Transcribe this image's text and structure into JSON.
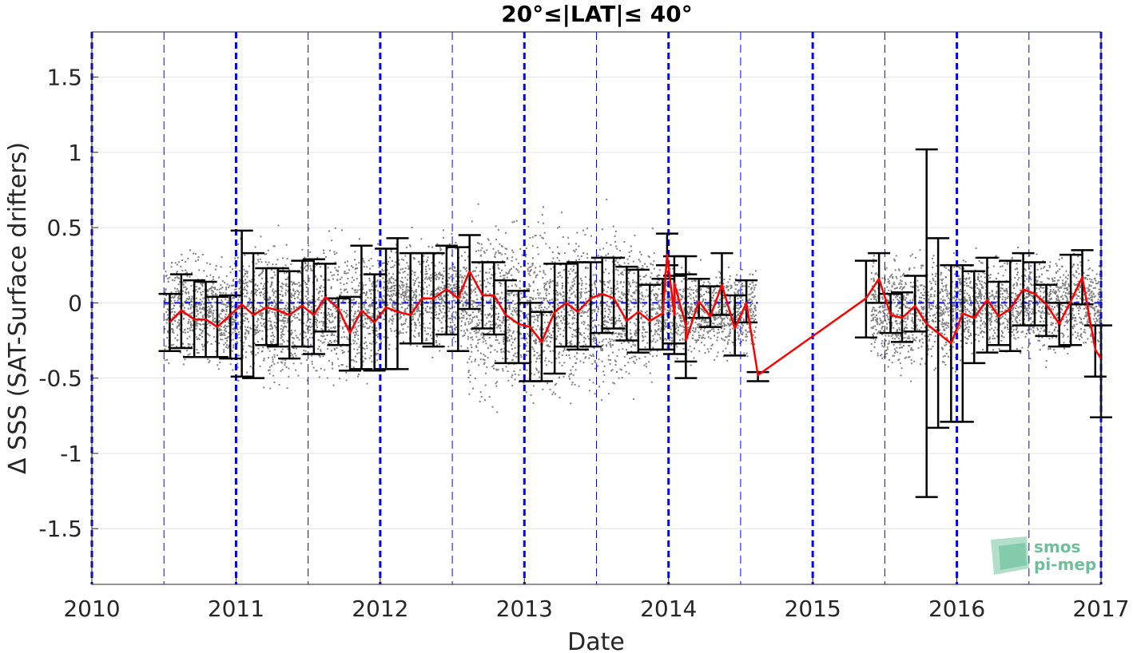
{
  "chart_data": {
    "type": "scatter",
    "title": "20°≤|LAT|≤ 40°",
    "xlabel": "Date",
    "ylabel": "Δ SSS (SAT-Surface drifters)",
    "xlim": [
      2010,
      2017
    ],
    "ylim": [
      -1.87,
      1.8
    ],
    "xticks": [
      2010,
      2011,
      2012,
      2013,
      2014,
      2015,
      2016,
      2017
    ],
    "yticks": [
      -1.5,
      -1,
      -0.5,
      0,
      0.5,
      1,
      1.5
    ],
    "ytick_labels": [
      "-1.5",
      "-1",
      "-0.5",
      "0",
      "0.5",
      "1",
      "1.5"
    ],
    "grid": true,
    "zero_line_color": "#0000ff",
    "year_line_color": "#0000ff",
    "scatter_color": "#808080",
    "errorbar_color": "#000000",
    "mean_color": "#ff0000",
    "scatter_clusters": [
      {
        "x": [
          2010.5,
          2011.0
        ],
        "center": -0.05,
        "spread": 0.22
      },
      {
        "x": [
          2011.0,
          2012.0
        ],
        "center": -0.05,
        "spread": 0.28
      },
      {
        "x": [
          2012.0,
          2012.6
        ],
        "center": 0.05,
        "spread": 0.22
      },
      {
        "x": [
          2012.6,
          2013.9
        ],
        "center": -0.05,
        "spread": 0.35
      },
      {
        "x": [
          2013.9,
          2014.6
        ],
        "center": -0.05,
        "spread": 0.18
      },
      {
        "x": [
          2015.4,
          2016.0
        ],
        "center": -0.05,
        "spread": 0.25
      },
      {
        "x": [
          2016.0,
          2017.0
        ],
        "center": 0.0,
        "spread": 0.2
      }
    ],
    "monthly": [
      {
        "x": 2010.54,
        "mean": -0.13,
        "low": -0.32,
        "high": 0.06
      },
      {
        "x": 2010.62,
        "mean": -0.05,
        "low": -0.3,
        "high": 0.19
      },
      {
        "x": 2010.71,
        "mean": -0.11,
        "low": -0.36,
        "high": 0.15
      },
      {
        "x": 2010.79,
        "mean": -0.11,
        "low": -0.36,
        "high": 0.14
      },
      {
        "x": 2010.87,
        "mean": -0.16,
        "low": -0.36,
        "high": 0.04
      },
      {
        "x": 2010.96,
        "mean": -0.08,
        "low": -0.37,
        "high": 0.05
      },
      {
        "x": 2011.04,
        "mean": -0.01,
        "low": -0.49,
        "high": 0.48
      },
      {
        "x": 2011.12,
        "mean": -0.08,
        "low": -0.5,
        "high": 0.33
      },
      {
        "x": 2011.21,
        "mean": -0.03,
        "low": -0.28,
        "high": 0.23
      },
      {
        "x": 2011.29,
        "mean": -0.05,
        "low": -0.29,
        "high": 0.23
      },
      {
        "x": 2011.37,
        "mean": -0.08,
        "low": -0.37,
        "high": 0.21
      },
      {
        "x": 2011.46,
        "mean": -0.02,
        "low": -0.29,
        "high": 0.28
      },
      {
        "x": 2011.54,
        "mean": -0.08,
        "low": -0.34,
        "high": 0.29
      },
      {
        "x": 2011.62,
        "mean": 0.04,
        "low": -0.19,
        "high": 0.26
      },
      {
        "x": 2011.71,
        "mean": -0.04,
        "low": -0.28,
        "high": 0.03
      },
      {
        "x": 2011.79,
        "mean": -0.2,
        "low": -0.45,
        "high": 0.04
      },
      {
        "x": 2011.87,
        "mean": -0.05,
        "low": -0.44,
        "high": 0.38
      },
      {
        "x": 2011.96,
        "mean": -0.13,
        "low": -0.45,
        "high": 0.19
      },
      {
        "x": 2012.04,
        "mean": -0.03,
        "low": -0.44,
        "high": 0.36
      },
      {
        "x": 2012.12,
        "mean": -0.06,
        "low": -0.44,
        "high": 0.43
      },
      {
        "x": 2012.21,
        "mean": -0.08,
        "low": -0.27,
        "high": 0.33
      },
      {
        "x": 2012.29,
        "mean": 0.03,
        "low": -0.27,
        "high": 0.33
      },
      {
        "x": 2012.37,
        "mean": 0.03,
        "low": -0.29,
        "high": 0.33
      },
      {
        "x": 2012.46,
        "mean": 0.09,
        "low": -0.21,
        "high": 0.38
      },
      {
        "x": 2012.54,
        "mean": 0.03,
        "low": -0.32,
        "high": 0.37
      },
      {
        "x": 2012.62,
        "mean": 0.21,
        "low": -0.04,
        "high": 0.45
      },
      {
        "x": 2012.71,
        "mean": 0.05,
        "low": -0.17,
        "high": 0.27
      },
      {
        "x": 2012.79,
        "mean": 0.05,
        "low": -0.21,
        "high": 0.27
      },
      {
        "x": 2012.87,
        "mean": -0.08,
        "low": -0.4,
        "high": 0.15
      },
      {
        "x": 2012.96,
        "mean": -0.14,
        "low": -0.4,
        "high": 0.08
      },
      {
        "x": 2013.04,
        "mean": -0.16,
        "low": -0.52,
        "high": 0.0
      },
      {
        "x": 2013.12,
        "mean": -0.26,
        "low": -0.52,
        "high": -0.06
      },
      {
        "x": 2013.21,
        "mean": -0.06,
        "low": -0.47,
        "high": 0.26
      },
      {
        "x": 2013.29,
        "mean": 0.0,
        "low": -0.29,
        "high": 0.26
      },
      {
        "x": 2013.37,
        "mean": -0.06,
        "low": -0.31,
        "high": 0.27
      },
      {
        "x": 2013.46,
        "mean": 0.03,
        "low": -0.29,
        "high": 0.27
      },
      {
        "x": 2013.54,
        "mean": 0.06,
        "low": -0.2,
        "high": 0.3
      },
      {
        "x": 2013.62,
        "mean": 0.03,
        "low": -0.17,
        "high": 0.3
      },
      {
        "x": 2013.71,
        "mean": -0.12,
        "low": -0.25,
        "high": 0.24
      },
      {
        "x": 2013.79,
        "mean": -0.06,
        "low": -0.33,
        "high": 0.22
      },
      {
        "x": 2013.87,
        "mean": -0.12,
        "low": -0.31,
        "high": 0.12
      },
      {
        "x": 2013.96,
        "mean": -0.07,
        "low": -0.31,
        "high": 0.16
      },
      {
        "x": 2014.04,
        "mean": -0.08,
        "low": -0.34,
        "high": 0.18
      },
      {
        "x": 2014.12,
        "mean": -0.15,
        "low": -0.39,
        "high": 0.19
      },
      {
        "x": 2013.99,
        "mean": 0.32,
        "low": 0.25,
        "high": 0.46
      },
      {
        "x": 2014.04,
        "mean": 0.13,
        "low": -0.27,
        "high": 0.31
      },
      {
        "x": 2014.12,
        "mean": -0.25,
        "low": -0.5,
        "high": 0.31
      },
      {
        "x": 2014.21,
        "mean": 0.01,
        "low": -0.1,
        "high": 0.16
      },
      {
        "x": 2014.29,
        "mean": -0.09,
        "low": -0.16,
        "high": 0.11
      },
      {
        "x": 2014.37,
        "mean": 0.12,
        "low": -0.08,
        "high": 0.33
      },
      {
        "x": 2014.46,
        "mean": -0.17,
        "low": -0.35,
        "high": 0.05
      },
      {
        "x": 2014.54,
        "mean": 0.0,
        "low": -0.13,
        "high": 0.15
      },
      {
        "x": 2014.62,
        "mean": -0.48,
        "low": -0.52,
        "high": -0.46
      },
      {
        "x": 2015.37,
        "mean": 0.03,
        "low": -0.23,
        "high": 0.28
      },
      {
        "x": 2015.46,
        "mean": 0.16,
        "low": 0.0,
        "high": 0.33
      },
      {
        "x": 2015.54,
        "mean": -0.08,
        "low": -0.2,
        "high": 0.06
      },
      {
        "x": 2015.62,
        "mean": -0.1,
        "low": -0.26,
        "high": 0.07
      },
      {
        "x": 2015.71,
        "mean": -0.02,
        "low": -0.19,
        "high": 0.18
      },
      {
        "x": 2015.79,
        "mean": -0.14,
        "low": -1.29,
        "high": 1.02
      },
      {
        "x": 2015.87,
        "mean": -0.2,
        "low": -0.83,
        "high": 0.43
      },
      {
        "x": 2015.96,
        "mean": -0.27,
        "low": -0.79,
        "high": 0.25
      },
      {
        "x": 2016.04,
        "mean": -0.07,
        "low": -0.79,
        "high": 0.25
      },
      {
        "x": 2016.12,
        "mean": -0.1,
        "low": -0.4,
        "high": 0.21
      },
      {
        "x": 2016.21,
        "mean": 0.02,
        "low": -0.33,
        "high": 0.3
      },
      {
        "x": 2016.29,
        "mean": -0.09,
        "low": -0.28,
        "high": 0.14
      },
      {
        "x": 2016.37,
        "mean": -0.04,
        "low": -0.32,
        "high": 0.28
      },
      {
        "x": 2016.46,
        "mean": 0.09,
        "low": -0.15,
        "high": 0.33
      },
      {
        "x": 2016.54,
        "mean": 0.06,
        "low": -0.15,
        "high": 0.27
      },
      {
        "x": 2016.62,
        "mean": -0.01,
        "low": -0.22,
        "high": 0.12
      },
      {
        "x": 2016.71,
        "mean": -0.14,
        "low": -0.29,
        "high": 0.0
      },
      {
        "x": 2016.79,
        "mean": 0.01,
        "low": -0.28,
        "high": 0.32
      },
      {
        "x": 2016.87,
        "mean": 0.17,
        "low": -0.01,
        "high": 0.35
      },
      {
        "x": 2016.96,
        "mean": -0.31,
        "low": -0.49,
        "high": -0.15
      },
      {
        "x": 2017.0,
        "mean": -0.37,
        "low": -0.76,
        "high": -0.15
      }
    ]
  },
  "logo": {
    "line1": "smos",
    "line2": "pi-mep",
    "color": "#6fbf9c"
  }
}
